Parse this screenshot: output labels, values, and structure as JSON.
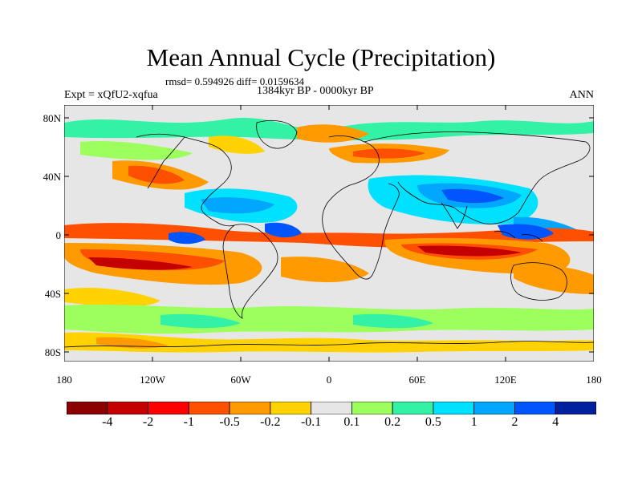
{
  "title": "Mean Annual Cycle (Precipitation)",
  "stats_line": "rmsd= 0.594926 diff= 0.0159634",
  "period_line": "1384kyr BP - 0000kyr BP",
  "experiment_label": "Expt = xQfU2-xqfua",
  "season_label": "ANN",
  "lat_ticks": [
    "80N",
    "40N",
    "0",
    "40S",
    "80S"
  ],
  "lon_ticks": [
    "180",
    "120W",
    "60W",
    "0",
    "60E",
    "120E",
    "180"
  ],
  "colorbar": {
    "colors": [
      "#8b0000",
      "#c40000",
      "#ff0000",
      "#ff4f00",
      "#ff9a00",
      "#ffd200",
      "#e6e6e6",
      "#9cff5e",
      "#33f2a6",
      "#00e0ff",
      "#00a6ff",
      "#0055ff",
      "#0020a0"
    ],
    "labels": [
      "-4",
      "-2",
      "-1",
      "-0.5",
      "-0.2",
      "-0.1",
      "0.1",
      "0.2",
      "0.5",
      "1",
      "2",
      "4"
    ]
  },
  "map": {
    "background": "#e6e6e6",
    "coastline": "#000000"
  }
}
